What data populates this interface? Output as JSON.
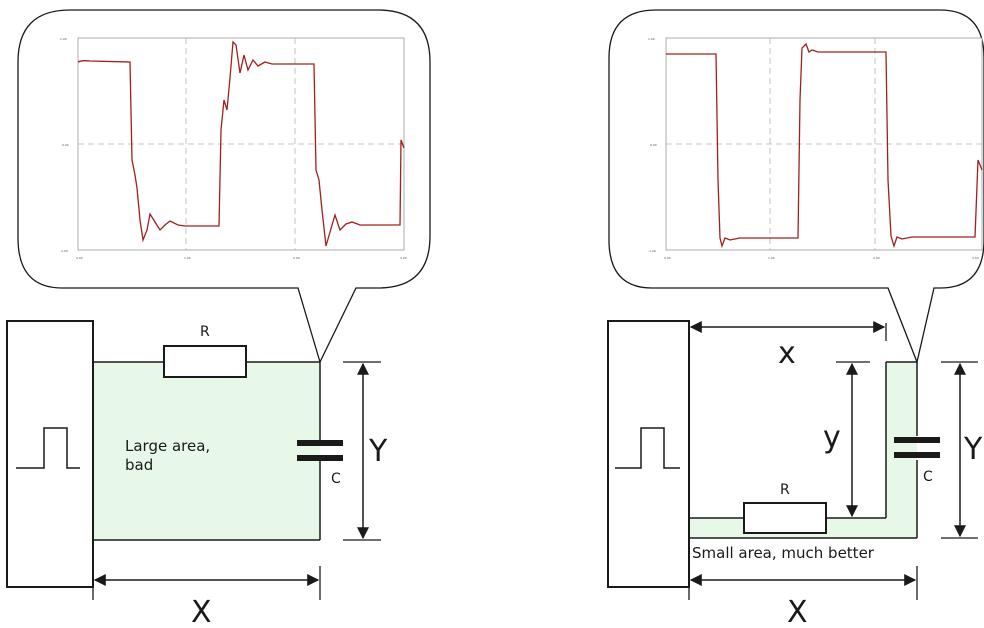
{
  "left_panel": {
    "resistor_label": "R",
    "capacitor_label": "C",
    "width_label": "X",
    "height_label": "Y",
    "area_text_line1": "Large area,",
    "area_text_line2": "bad",
    "area_fill_color": "#e8f8e8",
    "plot": {
      "y_ticks": [
        "1.00",
        "0.00",
        "-1.00"
      ],
      "x_ticks": [
        "0.00",
        "1.00",
        "2.00",
        "3.00"
      ],
      "trace_color": "#a0201e"
    }
  },
  "right_panel": {
    "resistor_label": "R",
    "capacitor_label": "C",
    "width_label": "X",
    "height_label": "Y",
    "inner_width_label": "x",
    "inner_height_label": "y",
    "area_text": "Small area, much better",
    "area_fill_color": "#e8f8e8",
    "plot": {
      "y_ticks": [
        "1.00",
        "0.00",
        "-1.00"
      ],
      "x_ticks": [
        "0.00",
        "1.00",
        "2.00",
        "3.00"
      ],
      "trace_color": "#a0201e"
    }
  },
  "colors": {
    "line": "#1a1a1a",
    "grid": "#b5b5b5"
  },
  "icons": {
    "source": "pulse-source-icon",
    "resistor": "resistor-icon",
    "capacitor": "capacitor-icon",
    "arrow": "double-arrow-icon"
  }
}
